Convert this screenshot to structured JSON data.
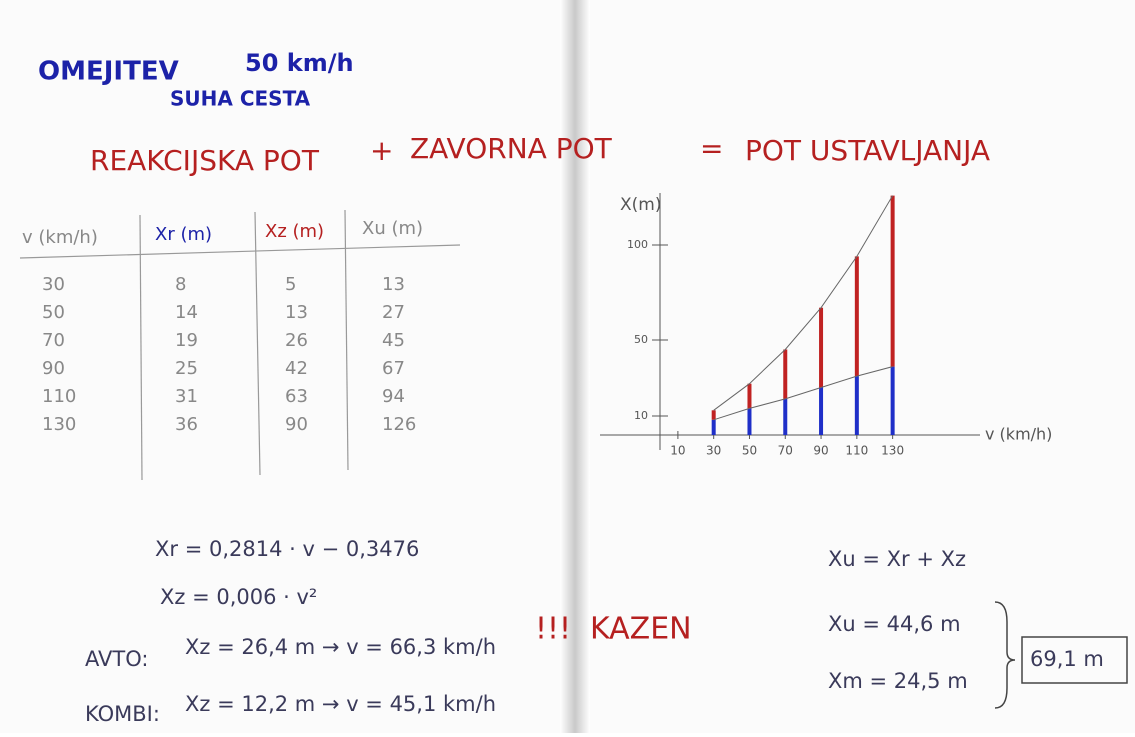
{
  "header": {
    "title": "OMEJITEV",
    "limit": "50 km/h",
    "subtitle": "SUHA CESTA",
    "equation": [
      "REAKCIJSKA POT",
      "+",
      "ZAVORNA POT",
      "=",
      "POT USTAVLJANJA"
    ]
  },
  "table": {
    "header": [
      "v (km/h)",
      "Xr (m)",
      "Xz (m)",
      "Xu (m)"
    ],
    "rows": [
      [
        "30",
        "8",
        "5",
        "13"
      ],
      [
        "50",
        "14",
        "13",
        "27"
      ],
      [
        "70",
        "19",
        "26",
        "45"
      ],
      [
        "90",
        "25",
        "42",
        "67"
      ],
      [
        "110",
        "31",
        "63",
        "94"
      ],
      [
        "130",
        "36",
        "90",
        "126"
      ]
    ]
  },
  "chart_data": {
    "type": "stacked-bar",
    "xlabel": "v (km/h)",
    "ylabel": "X(m)",
    "x": [
      30,
      50,
      70,
      90,
      110,
      130
    ],
    "xlim": [
      0,
      190
    ],
    "xticks": [
      10,
      30,
      50,
      70,
      90,
      110,
      130
    ],
    "ylim": [
      0,
      130
    ],
    "yticks": [
      10,
      50,
      100
    ],
    "series": [
      {
        "name": "Xr",
        "color": "#1f2fc8",
        "values": [
          8,
          14,
          19,
          25,
          31,
          36
        ]
      },
      {
        "name": "Xz",
        "color": "#c02222",
        "values": [
          5,
          13,
          26,
          42,
          63,
          90
        ]
      }
    ]
  },
  "formulas": {
    "xr": "Xr = 0,2814 · v − 0,3476",
    "xz": "Xz = 0,006 · v²",
    "avto_label": "AVTO:",
    "avto": "Xz = 26,4 m → v = 66,3 km/h",
    "alarm": "!!!",
    "penalty": "KAZEN",
    "kombi_label": "KOMBI:",
    "kombi": "Xz = 12,2 m → v = 45,1 km/h",
    "xu": "Xu = Xr + Xz",
    "xu_avto": "Xu = 44,6 m",
    "xu_kombi": "Xm = 24,5 m",
    "total": "69,1 m"
  }
}
